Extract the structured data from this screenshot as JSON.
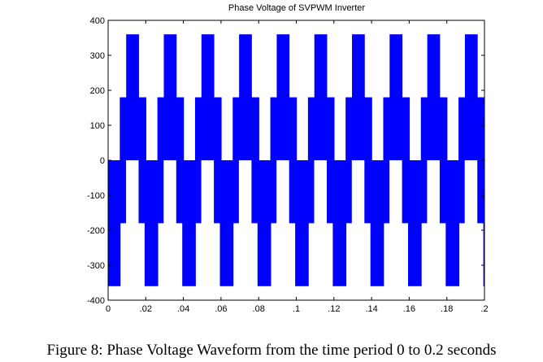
{
  "chart_data": {
    "type": "area",
    "title": "Phase Voltage of SVPWM Inverter",
    "xlabel": "",
    "ylabel": "",
    "xlim": [
      0,
      0.2
    ],
    "ylim": [
      -400,
      400
    ],
    "xticks": [
      0,
      0.02,
      0.04,
      0.06,
      0.08,
      0.1,
      0.12,
      0.14,
      0.16,
      0.18,
      0.2
    ],
    "xtick_labels": [
      "0",
      ".02",
      ".04",
      ".06",
      ".08",
      ".1",
      ".12",
      ".14",
      ".16",
      ".18",
      ".2"
    ],
    "yticks": [
      400,
      300,
      200,
      100,
      0,
      -100,
      -200,
      -300,
      -400
    ],
    "ytick_labels": [
      "400",
      "300",
      "200",
      "100",
      "0",
      "-100",
      "-200",
      "-300",
      "-400"
    ],
    "grid": false,
    "series_color": "#0000ff",
    "period": 0.02,
    "description_of_pattern": "PWM-filled stepped waveform; each period repeats these filled bands",
    "bands_per_period": [
      {
        "level": 180,
        "start": 0.0062,
        "end": 0.0203
      },
      {
        "level": 360,
        "start": 0.0096,
        "end": 0.0164
      },
      {
        "level": -180,
        "start": -0.0038,
        "end": 0.0095
      },
      {
        "level": -360,
        "start": -0.0006,
        "end": 0.0066
      }
    ]
  },
  "caption": "Figure 8: Phase Voltage Waveform from the time period 0 to 0.2 seconds"
}
